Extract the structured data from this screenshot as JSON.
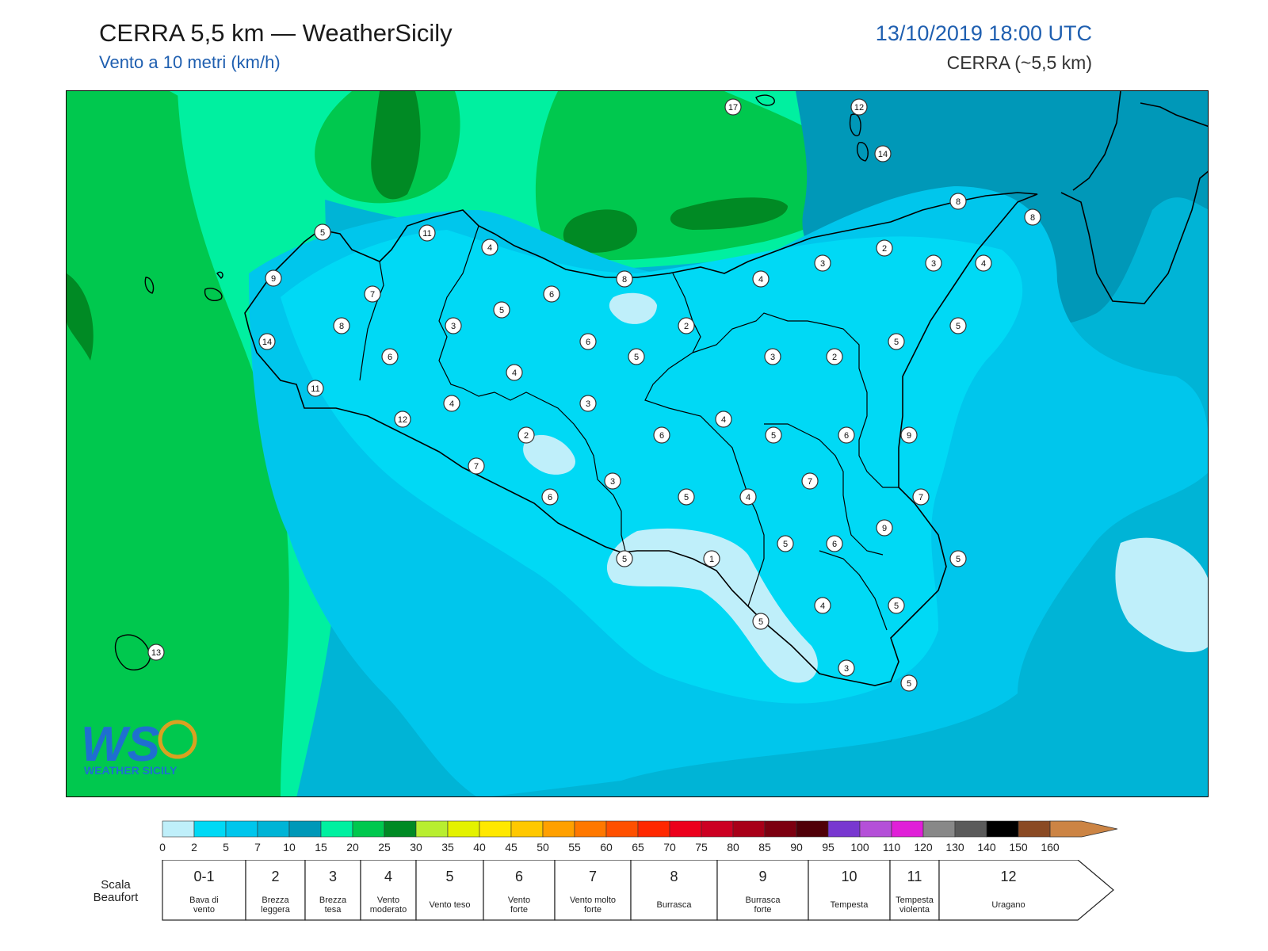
{
  "header": {
    "title": "CERRA 5,5 km — WeatherSicily",
    "subtitle": "Vento a 10 metri (km/h)",
    "datetime": "13/10/2019 18:00 UTC",
    "model": "CERRA (~5,5 km)"
  },
  "logo": {
    "letters": "WS",
    "text": "WEATHER SICILY"
  },
  "map": {
    "station_values": [
      17,
      12,
      14,
      8,
      8,
      5,
      11,
      4,
      9,
      7,
      2,
      3,
      4,
      3,
      8,
      4,
      6,
      5,
      8,
      3,
      2,
      14,
      6,
      6,
      5,
      5,
      3,
      2,
      5,
      4,
      11,
      4,
      3,
      12,
      2,
      6,
      4,
      5,
      6,
      9,
      7,
      3,
      5,
      4,
      7,
      6,
      7,
      5,
      6,
      9,
      1,
      5,
      5,
      4,
      5,
      5,
      3,
      5,
      13
    ]
  },
  "legend": {
    "ticks": [
      "0",
      "2",
      "5",
      "7",
      "10",
      "15",
      "20",
      "25",
      "30",
      "35",
      "40",
      "45",
      "50",
      "55",
      "60",
      "65",
      "70",
      "75",
      "80",
      "85",
      "90",
      "95",
      "100",
      "110",
      "120",
      "130",
      "140",
      "150",
      "160"
    ],
    "colors": [
      "#bfeffa",
      "#00d9f5",
      "#00c6ec",
      "#00b4d6",
      "#0098b8",
      "#00f0a0",
      "#00c84e",
      "#008a24",
      "#b8ee30",
      "#e4f200",
      "#ffe800",
      "#ffc800",
      "#ffa000",
      "#ff7800",
      "#ff5000",
      "#ff2800",
      "#ec001c",
      "#cc0022",
      "#a80018",
      "#7c0010",
      "#500008",
      "#7838d0",
      "#b450d8",
      "#e020d8",
      "#888888",
      "#5a5a5a",
      "#000000",
      "#8a4a24",
      "#cc8444"
    ]
  },
  "beaufort": {
    "label": "Scala Beaufort",
    "label_line1": "Scala",
    "label_line2": "Beaufort",
    "cells": [
      {
        "n": "0-1",
        "l1": "Bava di",
        "l2": "vento"
      },
      {
        "n": "2",
        "l1": "Brezza",
        "l2": "leggera"
      },
      {
        "n": "3",
        "l1": "Brezza",
        "l2": "tesa"
      },
      {
        "n": "4",
        "l1": "Vento",
        "l2": "moderato"
      },
      {
        "n": "5",
        "l1": "Vento teso",
        "l2": ""
      },
      {
        "n": "6",
        "l1": "Vento",
        "l2": "forte"
      },
      {
        "n": "7",
        "l1": "Vento molto",
        "l2": "forte"
      },
      {
        "n": "8",
        "l1": "Burrasca",
        "l2": ""
      },
      {
        "n": "9",
        "l1": "Burrasca",
        "l2": "forte"
      },
      {
        "n": "10",
        "l1": "Tempesta",
        "l2": ""
      },
      {
        "n": "11",
        "l1": "Tempesta",
        "l2": "violenta"
      },
      {
        "n": "12",
        "l1": "Uragano",
        "l2": ""
      }
    ]
  }
}
